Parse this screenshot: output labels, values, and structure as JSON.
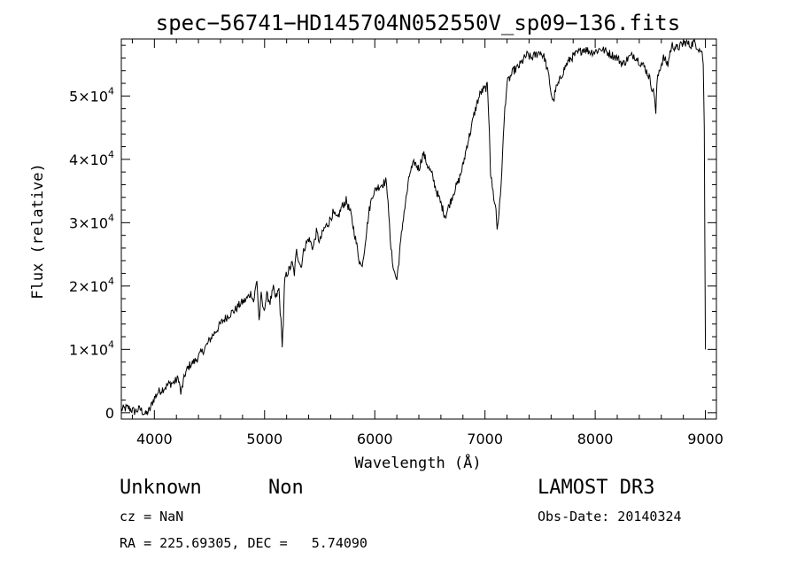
{
  "chart_data": {
    "type": "line",
    "title": "spec−56741−HD145704N052550V_sp09−136.fits",
    "xlabel": "Wavelength (Å)",
    "ylabel": "Flux (relative)",
    "xlim": [
      3700,
      9100
    ],
    "ylim": [
      -1000,
      59000
    ],
    "xticks": [
      {
        "value": 4000,
        "label": "4000"
      },
      {
        "value": 5000,
        "label": "5000"
      },
      {
        "value": 6000,
        "label": "6000"
      },
      {
        "value": 7000,
        "label": "7000"
      },
      {
        "value": 8000,
        "label": "8000"
      },
      {
        "value": 9000,
        "label": "9000"
      }
    ],
    "yticks": [
      {
        "value": 0,
        "mant": "0",
        "exp": ""
      },
      {
        "value": 10000,
        "mant": "1×10",
        "exp": "4"
      },
      {
        "value": 20000,
        "mant": "2×10",
        "exp": "4"
      },
      {
        "value": 30000,
        "mant": "3×10",
        "exp": "4"
      },
      {
        "value": 40000,
        "mant": "4×10",
        "exp": "4"
      },
      {
        "value": 50000,
        "mant": "5×10",
        "exp": "4"
      }
    ],
    "series": [
      {
        "name": "spectrum",
        "x": [
          3700,
          3760,
          3820,
          3870,
          3920,
          3960,
          3990,
          4030,
          4080,
          4130,
          4180,
          4220,
          4240,
          4280,
          4320,
          4370,
          4420,
          4470,
          4520,
          4570,
          4620,
          4680,
          4730,
          4780,
          4830,
          4880,
          4900,
          4930,
          4950,
          4970,
          4990,
          5020,
          5050,
          5080,
          5100,
          5130,
          5160,
          5170,
          5180,
          5190,
          5220,
          5250,
          5270,
          5290,
          5330,
          5360,
          5400,
          5440,
          5470,
          5500,
          5540,
          5580,
          5620,
          5660,
          5700,
          5740,
          5780,
          5820,
          5860,
          5880,
          5900,
          5920,
          5950,
          5980,
          6020,
          6060,
          6100,
          6120,
          6140,
          6160,
          6180,
          6200,
          6230,
          6260,
          6290,
          6320,
          6360,
          6400,
          6440,
          6480,
          6520,
          6560,
          6600,
          6640,
          6680,
          6720,
          6760,
          6800,
          6840,
          6870,
          6900,
          6930,
          6960,
          6990,
          7020,
          7040,
          7050,
          7060,
          7080,
          7100,
          7110,
          7120,
          7140,
          7160,
          7180,
          7200,
          7230,
          7260,
          7300,
          7340,
          7380,
          7420,
          7460,
          7500,
          7540,
          7580,
          7600,
          7620,
          7640,
          7670,
          7700,
          7740,
          7780,
          7820,
          7860,
          7900,
          7950,
          8000,
          8050,
          8100,
          8150,
          8200,
          8250,
          8300,
          8350,
          8400,
          8450,
          8490,
          8520,
          8540,
          8550,
          8560,
          8580,
          8620,
          8660,
          8680,
          8700,
          8740,
          8780,
          8820,
          8860,
          8900,
          8940,
          8970,
          8980,
          8990,
          9000
        ],
        "values": [
          500,
          800,
          200,
          600,
          -300,
          500,
          2000,
          3200,
          3800,
          4500,
          4800,
          5500,
          3000,
          6200,
          7500,
          8200,
          9300,
          10500,
          12000,
          13200,
          14500,
          15500,
          16200,
          17200,
          17800,
          19000,
          17500,
          21000,
          14500,
          18500,
          16000,
          18500,
          17500,
          19500,
          18000,
          19500,
          11000,
          14000,
          20000,
          21500,
          22500,
          23500,
          22000,
          25500,
          23000,
          26000,
          27500,
          26000,
          28500,
          27000,
          29000,
          30000,
          31500,
          30500,
          32500,
          33500,
          31500,
          28000,
          24000,
          23000,
          25000,
          28000,
          32000,
          34500,
          35500,
          36000,
          36500,
          34000,
          27000,
          24000,
          22000,
          21000,
          26000,
          31000,
          34500,
          38000,
          39500,
          38500,
          41000,
          39000,
          37500,
          35000,
          33000,
          31000,
          33000,
          35000,
          36500,
          39000,
          42500,
          44500,
          47000,
          49000,
          50500,
          51000,
          51500,
          45000,
          38000,
          36500,
          34000,
          32000,
          29000,
          30500,
          34000,
          41000,
          48000,
          52000,
          53000,
          54000,
          54500,
          55500,
          56500,
          56000,
          56500,
          57000,
          56000,
          53000,
          50500,
          49000,
          51000,
          52000,
          53500,
          55000,
          56000,
          56500,
          57000,
          57500,
          57000,
          57000,
          57500,
          57000,
          56500,
          56000,
          55000,
          56000,
          56500,
          55500,
          54500,
          53000,
          51000,
          50000,
          47000,
          52000,
          54000,
          56000,
          55000,
          57000,
          58000,
          57500,
          58000,
          58500,
          58000,
          58500,
          57500,
          57000,
          55000,
          45000,
          10000
        ]
      }
    ]
  },
  "info": {
    "object_type": "Unknown",
    "object_subtype": "Non",
    "survey": "LAMOST DR3",
    "cz": "cz = NaN",
    "obs_date": "Obs-Date: 20140324",
    "coords": "RA = 225.69305, DEC =   5.74090"
  }
}
